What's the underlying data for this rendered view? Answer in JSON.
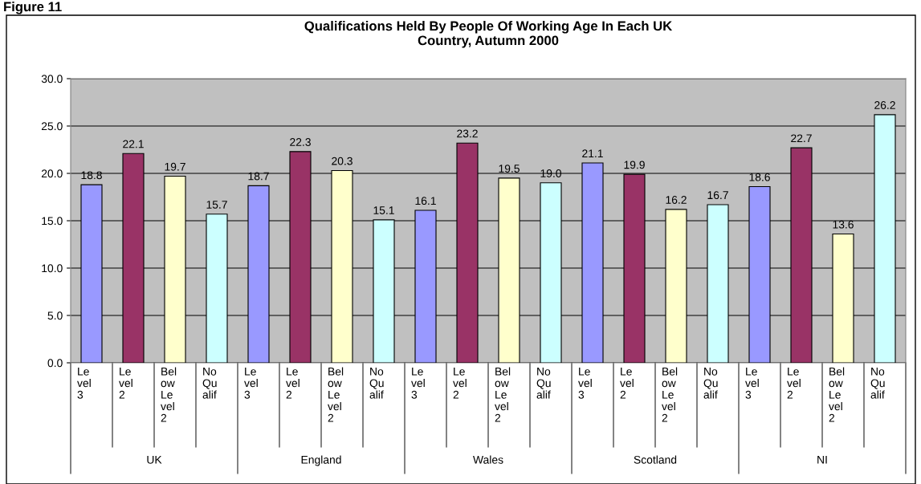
{
  "chart_data": {
    "type": "bar",
    "title": "Qualifications Held By People Of Working Age In Each UK\nCountry, Autumn 2000",
    "categories": [
      "Le\nvel\n3",
      "Le\nvel\n2",
      "Bel\now\nLe\nvel\n2",
      "No\nQu\nalif",
      "Le\nvel\n3",
      "Le\nvel\n2",
      "Bel\now\nLe\nvel\n2",
      "No\nQu\nalif",
      "Le\nvel\n3",
      "Le\nvel\n2",
      "Bel\now\nLe\nvel\n2",
      "No\nQu\nalif",
      "Le\nvel\n3",
      "Le\nvel\n2",
      "Bel\now\nLe\nvel\n2",
      "No\nQu\nalif",
      "Le\nvel\n3",
      "Le\nvel\n2",
      "Bel\now\nLe\nvel\n2",
      "No\nQu\nalif"
    ],
    "values": [
      18.8,
      22.1,
      19.7,
      15.7,
      18.7,
      22.3,
      20.3,
      15.1,
      16.1,
      23.2,
      19.5,
      19.0,
      21.1,
      19.9,
      16.2,
      16.7,
      18.6,
      22.7,
      13.6,
      26.2
    ],
    "value_labels": [
      "18.8",
      "22.1",
      "19.7",
      "15.7",
      "18.7",
      "22.3",
      "20.3",
      "15.1",
      "16.1",
      "23.2",
      "19.5",
      "19.0",
      "21.1",
      "19.9",
      "16.2",
      "16.7",
      "18.6",
      "22.7",
      "13.6",
      "26.2"
    ],
    "colors": [
      "#9999ff",
      "#993366",
      "#ffffcc",
      "#ccffff",
      "#9999ff",
      "#993366",
      "#ffffcc",
      "#ccffff",
      "#9999ff",
      "#993366",
      "#ffffcc",
      "#ccffff",
      "#9999ff",
      "#993366",
      "#ffffcc",
      "#ccffff",
      "#9999ff",
      "#993366",
      "#ffffcc",
      "#ccffff"
    ],
    "ylim": [
      0,
      30
    ],
    "yticks": [
      {
        "value": 0,
        "label": "0.0"
      },
      {
        "value": 5,
        "label": "5.0"
      },
      {
        "value": 10,
        "label": "10.0"
      },
      {
        "value": 15,
        "label": "15.0"
      },
      {
        "value": 20,
        "label": "20.0"
      },
      {
        "value": 25,
        "label": "25.0"
      },
      {
        "value": 30,
        "label": "30.0"
      }
    ],
    "grid": "y",
    "annotations": [
      "Figure 11",
      "UK",
      "England",
      "Wales",
      "Scotland",
      "NI"
    ]
  }
}
